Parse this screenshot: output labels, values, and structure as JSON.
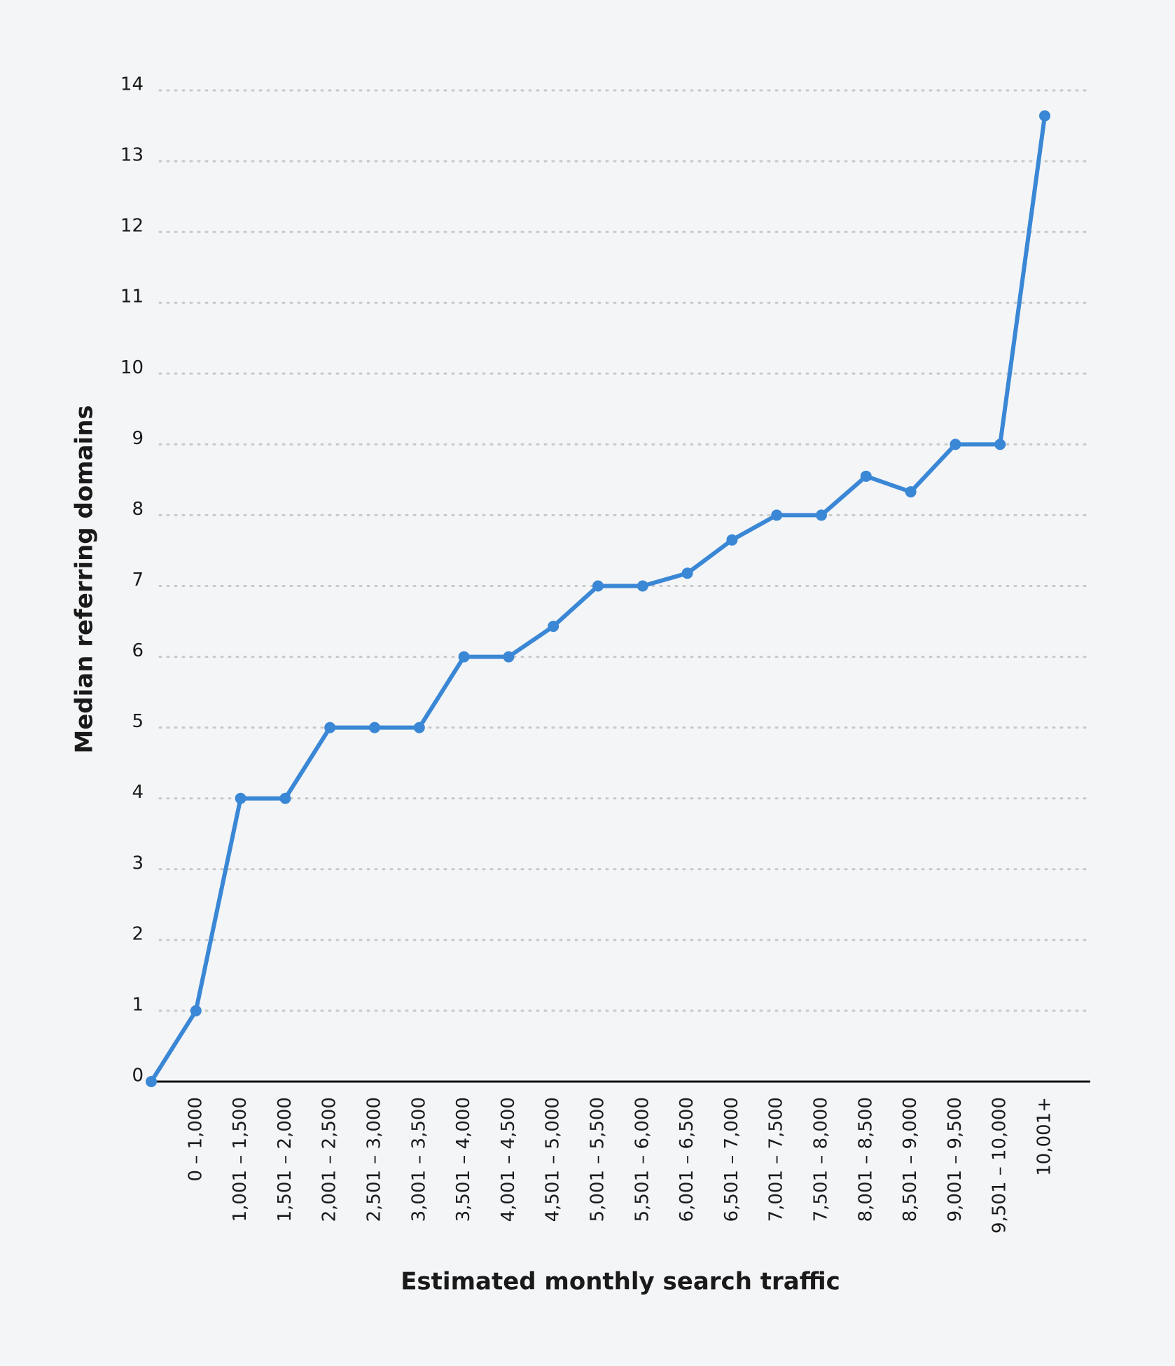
{
  "chart_data": {
    "type": "line",
    "x_label": "Estimated monthly search traffic",
    "y_label": "Median referring domains",
    "categories": [
      null,
      "0 – 1,000",
      "1,001 – 1,500",
      "1,501 – 2,000",
      "2,001 – 2,500",
      "2,501 – 3,000",
      "3,001 – 3,500",
      "3,501 – 4,000",
      "4,001 – 4,500",
      "4,501 – 5,000",
      "5,001 – 5,500",
      "5,501 – 6,000",
      "6,001 – 6,500",
      "6,501 – 7,000",
      "7,001 – 7,500",
      "7,501 – 8,000",
      "8,001 – 8,500",
      "8,501 – 9,000",
      "9,001 – 9,500",
      "9,501 – 10,000",
      "10,001+"
    ],
    "series": [
      {
        "color": "#3a87d6",
        "values": [
          0,
          1,
          4,
          4,
          5,
          5,
          5,
          6,
          6,
          6.43,
          7,
          7,
          7.18,
          7.65,
          8,
          8,
          8.55,
          8.33,
          9,
          9,
          13.64
        ]
      }
    ],
    "ylim": [
      0,
      14
    ],
    "yticks": [
      0,
      1,
      2,
      3,
      4,
      5,
      6,
      7,
      8,
      9,
      10,
      11,
      12,
      13,
      14
    ],
    "grid": true
  }
}
